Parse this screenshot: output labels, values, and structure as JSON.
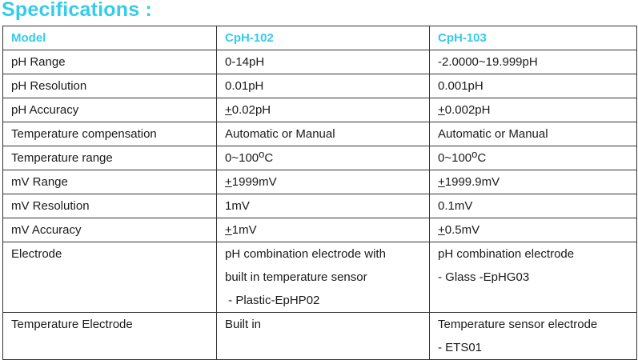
{
  "title": "Specifications :",
  "table": {
    "headers": [
      "Model",
      "CpH-102",
      "CpH-103"
    ],
    "rows": [
      {
        "label": "pH Range",
        "cph102": "0-14pH",
        "cph103": "-2.0000~19.999pH"
      },
      {
        "label": "pH Resolution",
        "cph102": "0.01pH",
        "cph103": "0.001pH"
      },
      {
        "label": "pH Accuracy",
        "cph102_sign": "+",
        "cph102": "0.02pH",
        "cph103_sign": "+",
        "cph103": "0.002pH"
      },
      {
        "label": "Temperature compensation",
        "cph102": "Automatic or Manual",
        "cph103": "Automatic or Manual"
      },
      {
        "label": "Temperature range",
        "cph102_pre": "0~100",
        "cph102_deg": "o",
        "cph102_post": "C",
        "cph103_pre": "0~100",
        "cph103_deg": "o",
        "cph103_post": "C"
      },
      {
        "label": "mV Range",
        "cph102_sign": "+",
        "cph102": "1999mV",
        "cph103_sign": "+",
        "cph103": "1999.9mV"
      },
      {
        "label": "mV Resolution",
        "cph102": "1mV",
        "cph103": "0.1mV"
      },
      {
        "label": "mV Accuracy",
        "cph102_sign": "+",
        "cph102": "1mV",
        "cph103_sign": "+",
        "cph103": "0.5mV"
      },
      {
        "label": "Electrode",
        "cph102_lines": [
          "pH combination electrode with",
          "built in temperature sensor",
          " - Plastic-EpHP02"
        ],
        "cph103_lines": [
          "pH combination electrode",
          "- Glass -EpHG03"
        ]
      },
      {
        "label": "Temperature Electrode",
        "cph102": "Built in",
        "cph103_lines": [
          "Temperature sensor electrode",
          "- ETS01"
        ]
      }
    ]
  },
  "colors": {
    "accent": "#33ccea",
    "text": "#1a1a1a",
    "border": "#333333"
  }
}
